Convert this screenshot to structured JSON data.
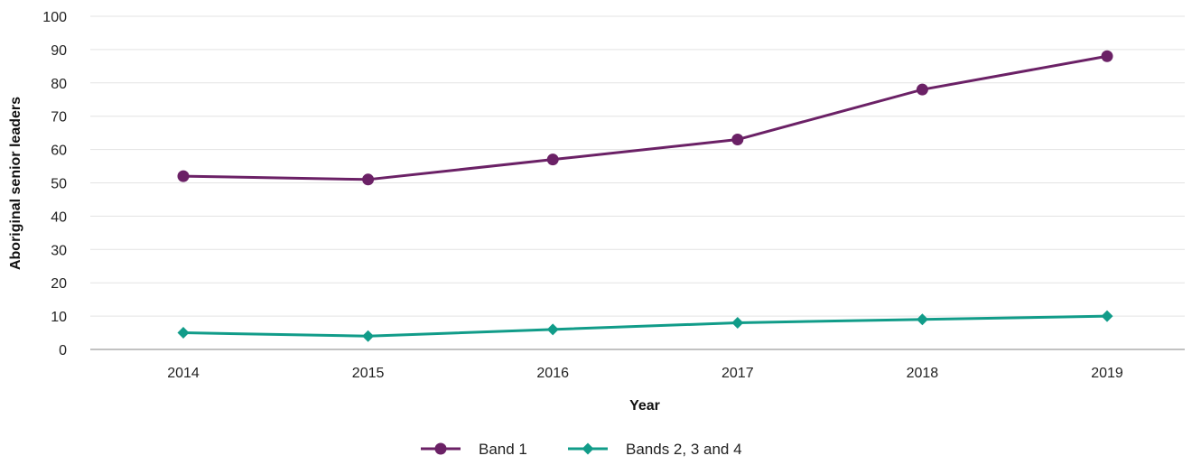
{
  "chart_data": {
    "type": "line",
    "title": "",
    "xlabel": "Year",
    "ylabel": "Aboriginal senior leaders",
    "categories": [
      "2014",
      "2015",
      "2016",
      "2017",
      "2018",
      "2019"
    ],
    "ylim": [
      0,
      100
    ],
    "yticks": [
      "0",
      "10",
      "20",
      "30",
      "40",
      "50",
      "60",
      "70",
      "80",
      "90",
      "100"
    ],
    "grid": true,
    "legend_position": "bottom-center",
    "series": [
      {
        "name": "Band 1",
        "values": [
          52,
          51,
          57,
          63,
          78,
          88
        ],
        "color": "#6b2166",
        "marker": "circle"
      },
      {
        "name": "Bands 2, 3 and 4",
        "values": [
          5,
          4,
          6,
          8,
          9,
          10
        ],
        "color": "#119c89",
        "marker": "diamond"
      }
    ]
  }
}
